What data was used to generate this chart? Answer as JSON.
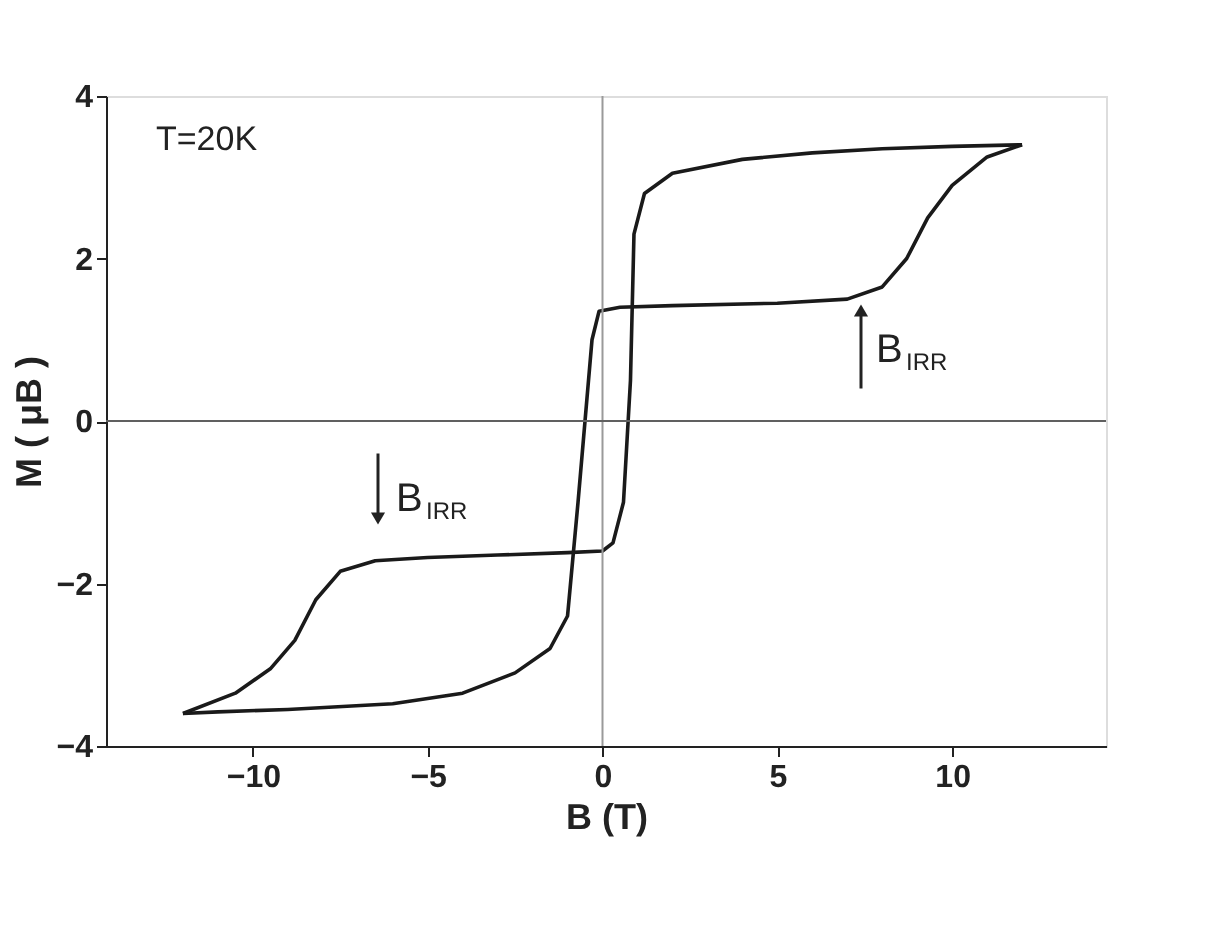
{
  "chart_data": {
    "type": "line",
    "xlabel": "B (T)",
    "ylabel": "M ( μB )",
    "series": [
      {
        "color": "#1a1a1a",
        "x": [
          -12,
          -10.5,
          -9.5,
          -8.8,
          -8.2,
          -7.5,
          -6.5,
          -5,
          -3,
          -1,
          0,
          0.3,
          0.6,
          0.8,
          0.9,
          1.2,
          2,
          4,
          6,
          8,
          10,
          12
        ],
        "values": [
          -3.6,
          -3.35,
          -3.05,
          -2.7,
          -2.2,
          -1.85,
          -1.72,
          -1.68,
          -1.65,
          -1.62,
          -1.6,
          -1.5,
          -1.0,
          0.5,
          2.3,
          2.8,
          3.05,
          3.22,
          3.3,
          3.35,
          3.38,
          3.4
        ]
      },
      {
        "color": "#1a1a1a",
        "x": [
          -12,
          -11,
          -9,
          -6,
          -4,
          -2.5,
          -1.5,
          -1,
          -0.7,
          -0.5,
          -0.3,
          -0.1,
          0.5,
          2,
          5,
          7,
          8,
          8.7,
          9.3,
          10,
          11,
          12
        ],
        "values": [
          -3.6,
          -3.58,
          -3.55,
          -3.48,
          -3.35,
          -3.1,
          -2.8,
          -2.4,
          -1.0,
          0,
          1.0,
          1.35,
          1.4,
          1.42,
          1.45,
          1.5,
          1.65,
          2.0,
          2.5,
          2.9,
          3.25,
          3.4
        ]
      }
    ],
    "xlim": [
      -14.2,
      14.4
    ],
    "ylim": [
      -4,
      4
    ],
    "xticks": [
      -10,
      -5,
      0,
      5,
      10
    ],
    "yticks": [
      -4,
      -2,
      0,
      2,
      4
    ],
    "grid": false,
    "marker": "none",
    "line_style": "solid",
    "ref_lines": [
      {
        "axis": "x",
        "value": 0,
        "color": "#9a9a9a"
      },
      {
        "axis": "y",
        "value": 0,
        "color": "#606060"
      }
    ],
    "annotations": [
      "T=20K",
      "B$_{IRR}$",
      "B$_{IRR}$"
    ]
  }
}
